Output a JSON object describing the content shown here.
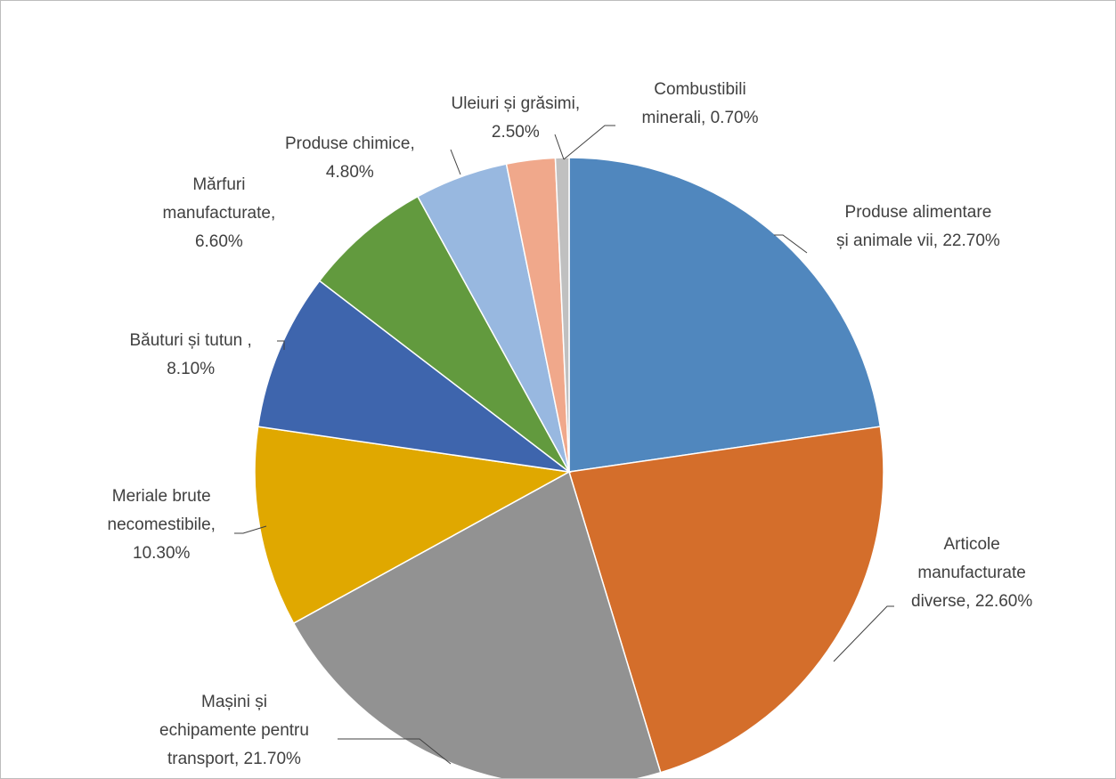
{
  "chart_data": {
    "type": "pie",
    "categories": [
      "Produse alimentare și animale vii",
      "Articole manufacturate diverse",
      "Mașini și echipamente pentru transport",
      "Meriale brute necomestibile",
      "Băuturi și tutun ",
      "Mărfuri manufacturate",
      "Produse chimice",
      "Uleiuri și grăsimi",
      "Combustibili minerali"
    ],
    "values": [
      22.7,
      22.6,
      21.7,
      10.3,
      8.1,
      6.6,
      4.8,
      2.5,
      0.7
    ],
    "value_labels": [
      "22.70%",
      "22.60%",
      "21.70%",
      "10.30%",
      "8.10%",
      "6.60%",
      "4.80%",
      "2.50%",
      "0.70%"
    ],
    "label_separator": ", ",
    "colors": [
      "#5087be",
      "#d46e2b",
      "#929292",
      "#e0a800",
      "#3e65ad",
      "#629a3e",
      "#98b8e0",
      "#f0a88b",
      "#c0c0c0"
    ]
  }
}
